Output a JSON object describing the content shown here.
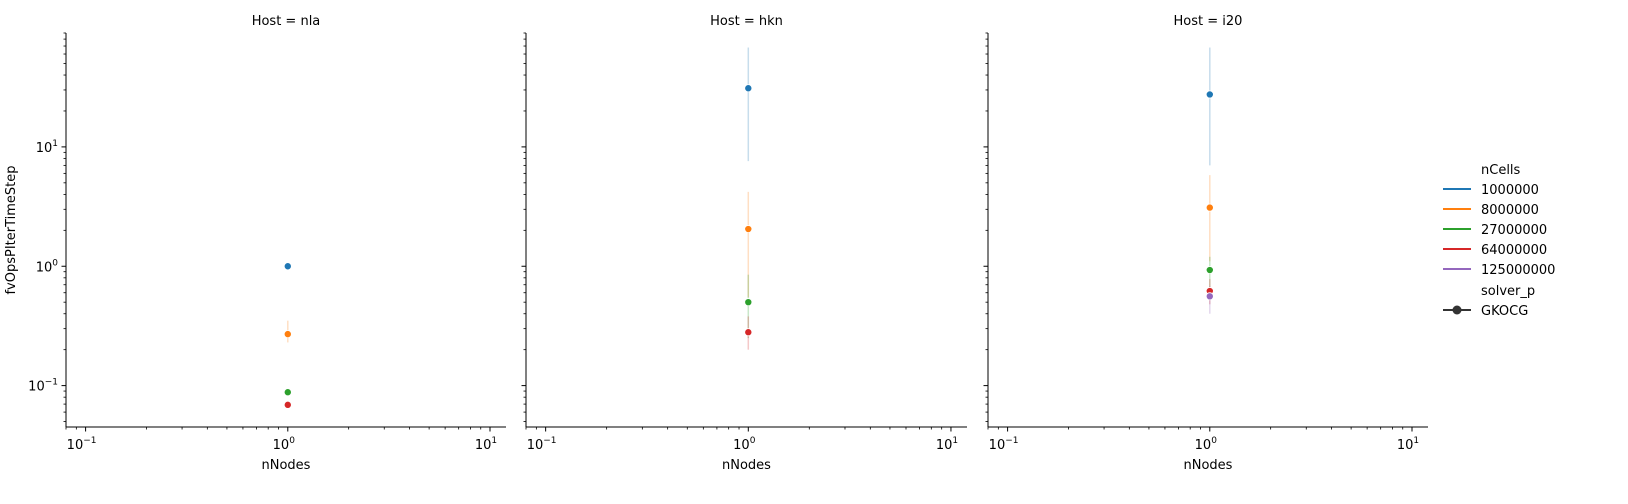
{
  "chart_data": {
    "type": "scatter",
    "xscale": "log",
    "yscale": "log",
    "xlim": [
      0.08,
      12
    ],
    "ylim": [
      0.045,
      90
    ],
    "xlabel": "nNodes",
    "ylabel": "fvOpsPIterTimeStep",
    "x_ticks": [
      {
        "value": 0.1,
        "base": "10",
        "exp": "−1"
      },
      {
        "value": 1,
        "base": "10",
        "exp": "0"
      },
      {
        "value": 10,
        "base": "10",
        "exp": "1"
      }
    ],
    "y_ticks": [
      {
        "value": 0.1,
        "base": "10",
        "exp": "−1"
      },
      {
        "value": 1,
        "base": "10",
        "exp": "0"
      },
      {
        "value": 10,
        "base": "10",
        "exp": "1"
      }
    ],
    "legend": {
      "position": "right",
      "hue_title": "nCells",
      "hue_entries": [
        {
          "label": "1000000",
          "color": "#1f77b4"
        },
        {
          "label": "8000000",
          "color": "#ff7f0e"
        },
        {
          "label": "27000000",
          "color": "#2ca02c"
        },
        {
          "label": "64000000",
          "color": "#d62728"
        },
        {
          "label": "125000000",
          "color": "#9467bd"
        }
      ],
      "style_title": "solver_p",
      "style_entries": [
        {
          "label": "GKOCG",
          "color": "#333333",
          "marker": "circle"
        }
      ]
    },
    "panels": [
      {
        "title": "Host = nla",
        "points": [
          {
            "series": "1000000",
            "x": 1,
            "y": 1.0,
            "err": [
              0.97,
              1.03
            ]
          },
          {
            "series": "8000000",
            "x": 1,
            "y": 0.27,
            "err": [
              0.23,
              0.35
            ]
          },
          {
            "series": "27000000",
            "x": 1,
            "y": 0.088,
            "err": [
              0.084,
              0.092
            ]
          },
          {
            "series": "64000000",
            "x": 1,
            "y": 0.069,
            "err": [
              0.066,
              0.072
            ]
          }
        ]
      },
      {
        "title": "Host = hkn",
        "points": [
          {
            "series": "1000000",
            "x": 1,
            "y": 31,
            "err": [
              7.6,
              68
            ]
          },
          {
            "series": "8000000",
            "x": 1,
            "y": 2.05,
            "err": [
              0.55,
              4.2
            ]
          },
          {
            "series": "27000000",
            "x": 1,
            "y": 0.5,
            "err": [
              0.25,
              0.85
            ]
          },
          {
            "series": "64000000",
            "x": 1,
            "y": 0.28,
            "err": [
              0.2,
              0.38
            ]
          }
        ]
      },
      {
        "title": "Host = i20",
        "points": [
          {
            "series": "1000000",
            "x": 1,
            "y": 27.5,
            "err": [
              7.0,
              68
            ]
          },
          {
            "series": "8000000",
            "x": 1,
            "y": 3.1,
            "err": [
              1.1,
              5.8
            ]
          },
          {
            "series": "27000000",
            "x": 1,
            "y": 0.93,
            "err": [
              0.55,
              1.2
            ]
          },
          {
            "series": "64000000",
            "x": 1,
            "y": 0.62,
            "err": [
              0.48,
              0.78
            ]
          },
          {
            "series": "125000000",
            "x": 1,
            "y": 0.56,
            "err": [
              0.4,
              0.68
            ]
          }
        ]
      }
    ]
  }
}
